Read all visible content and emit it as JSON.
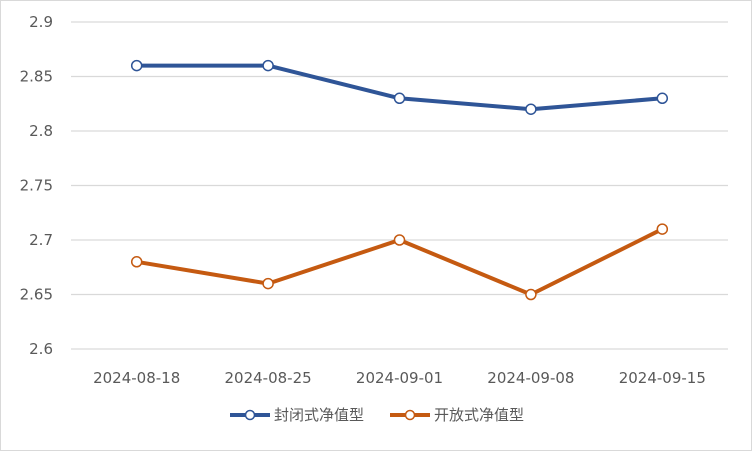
{
  "chart_data": {
    "type": "line",
    "title": "",
    "xlabel": "",
    "ylabel": "",
    "categories": [
      "2024-08-18",
      "2024-08-25",
      "2024-09-01",
      "2024-09-08",
      "2024-09-15"
    ],
    "series": [
      {
        "name": "封闭式净值型",
        "color": "#2F5597",
        "values": [
          2.86,
          2.86,
          2.83,
          2.82,
          2.83
        ]
      },
      {
        "name": "开放式净值型",
        "color": "#C55A11",
        "values": [
          2.68,
          2.66,
          2.7,
          2.65,
          2.71
        ]
      }
    ],
    "ylim": [
      2.6,
      2.9
    ],
    "yticks": [
      "2.9",
      "2.85",
      "2.8",
      "2.75",
      "2.7",
      "2.65",
      "2.6"
    ],
    "grid": true,
    "legend_position": "bottom",
    "markers": "hollow-circle"
  },
  "legend": {
    "items": [
      {
        "label": "封闭式净值型",
        "color": "#2F5597"
      },
      {
        "label": "开放式净值型",
        "color": "#C55A11"
      }
    ]
  }
}
